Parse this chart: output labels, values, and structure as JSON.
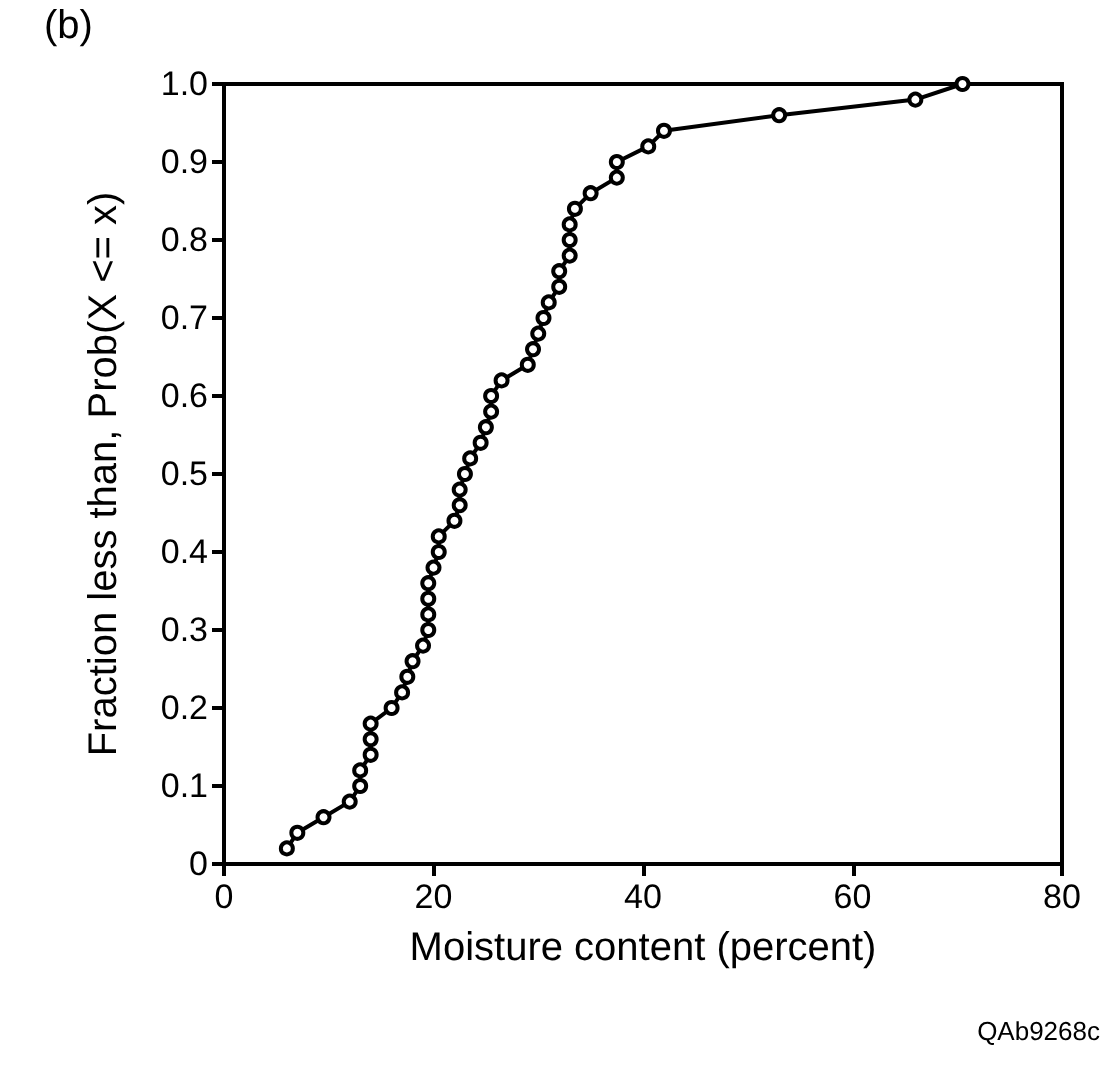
{
  "chart_data": {
    "type": "line",
    "xlabel": "Moisture content (percent)",
    "ylabel": "Fraction less than, Prob(X <= x)",
    "annotations": [
      "(b)",
      "QAb9268c"
    ],
    "series": [
      {
        "color": "#000000",
        "x": [
          6,
          7,
          9.5,
          12,
          13,
          13,
          14,
          14,
          14,
          16,
          17,
          17.5,
          18,
          19,
          19.5,
          19.5,
          19.5,
          19.5,
          20,
          20.5,
          20.5,
          22,
          22.5,
          22.5,
          23,
          23.5,
          24.5,
          25,
          25.5,
          25.5,
          26.5,
          29,
          29.5,
          30,
          30.5,
          31,
          32,
          32,
          33,
          33,
          33,
          33.5,
          35,
          37.5,
          37.5,
          40.5,
          42,
          53,
          66,
          70.5
        ],
        "values": [
          0.02,
          0.04,
          0.06,
          0.08,
          0.1,
          0.12,
          0.14,
          0.16,
          0.18,
          0.2,
          0.22,
          0.24,
          0.26,
          0.28,
          0.3,
          0.32,
          0.34,
          0.36,
          0.38,
          0.4,
          0.42,
          0.44,
          0.46,
          0.48,
          0.5,
          0.52,
          0.54,
          0.56,
          0.58,
          0.6,
          0.62,
          0.64,
          0.66,
          0.68,
          0.7,
          0.72,
          0.74,
          0.76,
          0.78,
          0.8,
          0.82,
          0.84,
          0.86,
          0.88,
          0.9,
          0.92,
          0.94,
          0.96,
          0.98,
          1.0
        ]
      }
    ],
    "marker": "circle",
    "line_style": "solid",
    "xlim": [
      0,
      80
    ],
    "xticks": [
      0,
      20,
      40,
      60,
      80
    ],
    "ylim": [
      0,
      1
    ],
    "yticks": [
      0,
      0.1,
      0.2,
      0.3,
      0.4,
      0.5,
      0.6,
      0.7,
      0.8,
      0.9,
      {
        "value": 1,
        "label": "1.0"
      }
    ]
  }
}
